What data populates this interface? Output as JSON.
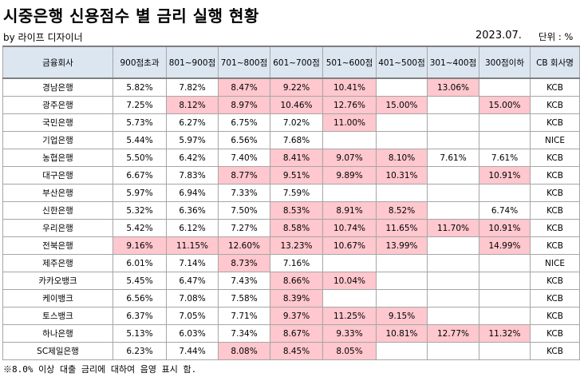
{
  "header": {
    "title": "시중은행 신용점수 별 금리 실행 현황",
    "byline": "by 라이프 디자이너",
    "date": "2023.07.",
    "unit": "단위 : %"
  },
  "table": {
    "columns": [
      "금융회사",
      "900점초과",
      "801~900점",
      "701~800점",
      "601~700점",
      "501~600점",
      "401~500점",
      "301~400점",
      "300점이하",
      "CB 회사명"
    ],
    "highlight_threshold": 8.0,
    "highlight_color": "#ffc7ce",
    "rows": [
      {
        "bank": "경남은행",
        "v": [
          "5.82%",
          "7.82%",
          "8.47%",
          "9.22%",
          "10.41%",
          "",
          "13.06%",
          ""
        ],
        "cb": "KCB"
      },
      {
        "bank": "광주은행",
        "v": [
          "7.25%",
          "8.12%",
          "8.97%",
          "10.46%",
          "12.76%",
          "15.00%",
          "",
          "15.00%"
        ],
        "cb": "KCB"
      },
      {
        "bank": "국민은행",
        "v": [
          "5.73%",
          "6.27%",
          "6.75%",
          "7.02%",
          "11.00%",
          "",
          "",
          ""
        ],
        "cb": "KCB"
      },
      {
        "bank": "기업은행",
        "v": [
          "5.44%",
          "5.97%",
          "6.56%",
          "7.68%",
          "",
          "",
          "",
          ""
        ],
        "cb": "NICE"
      },
      {
        "bank": "농협은행",
        "v": [
          "5.50%",
          "6.42%",
          "7.40%",
          "8.41%",
          "9.07%",
          "8.10%",
          "7.61%",
          "7.61%"
        ],
        "cb": "KCB"
      },
      {
        "bank": "대구은행",
        "v": [
          "6.67%",
          "7.83%",
          "8.77%",
          "9.51%",
          "9.89%",
          "10.31%",
          "",
          "10.91%"
        ],
        "cb": "KCB"
      },
      {
        "bank": "부산은행",
        "v": [
          "5.97%",
          "6.94%",
          "7.33%",
          "7.59%",
          "",
          "",
          "",
          ""
        ],
        "cb": "KCB"
      },
      {
        "bank": "신한은행",
        "v": [
          "5.32%",
          "6.36%",
          "7.50%",
          "8.53%",
          "8.91%",
          "8.52%",
          "",
          "6.74%"
        ],
        "cb": "KCB"
      },
      {
        "bank": "우리은행",
        "v": [
          "5.42%",
          "6.12%",
          "7.27%",
          "8.58%",
          "10.74%",
          "11.65%",
          "11.70%",
          "10.91%"
        ],
        "cb": "KCB"
      },
      {
        "bank": "전북은행",
        "v": [
          "9.16%",
          "11.15%",
          "12.60%",
          "13.23%",
          "10.67%",
          "13.99%",
          "",
          "14.99%"
        ],
        "cb": "KCB"
      },
      {
        "bank": "제주은행",
        "v": [
          "6.01%",
          "7.14%",
          "8.73%",
          "7.16%",
          "",
          "",
          "",
          ""
        ],
        "cb": "NICE"
      },
      {
        "bank": "카카오뱅크",
        "v": [
          "5.45%",
          "6.47%",
          "7.43%",
          "8.66%",
          "10.04%",
          "",
          "",
          ""
        ],
        "cb": "KCB"
      },
      {
        "bank": "케이뱅크",
        "v": [
          "6.56%",
          "7.08%",
          "7.58%",
          "8.39%",
          "",
          "",
          "",
          ""
        ],
        "cb": "KCB"
      },
      {
        "bank": "토스뱅크",
        "v": [
          "6.37%",
          "7.05%",
          "7.71%",
          "9.37%",
          "11.25%",
          "9.15%",
          "",
          ""
        ],
        "cb": "KCB"
      },
      {
        "bank": "하나은행",
        "v": [
          "5.13%",
          "6.03%",
          "7.34%",
          "8.67%",
          "9.33%",
          "10.81%",
          "12.77%",
          "11.32%"
        ],
        "cb": "KCB"
      },
      {
        "bank": "SC제일은행",
        "v": [
          "6.23%",
          "7.44%",
          "8.08%",
          "8.45%",
          "8.05%",
          "",
          "",
          ""
        ],
        "cb": "KCB"
      }
    ]
  },
  "footnote": "※8.0% 이상 대출 금리에 대하여 음영 표시 함."
}
